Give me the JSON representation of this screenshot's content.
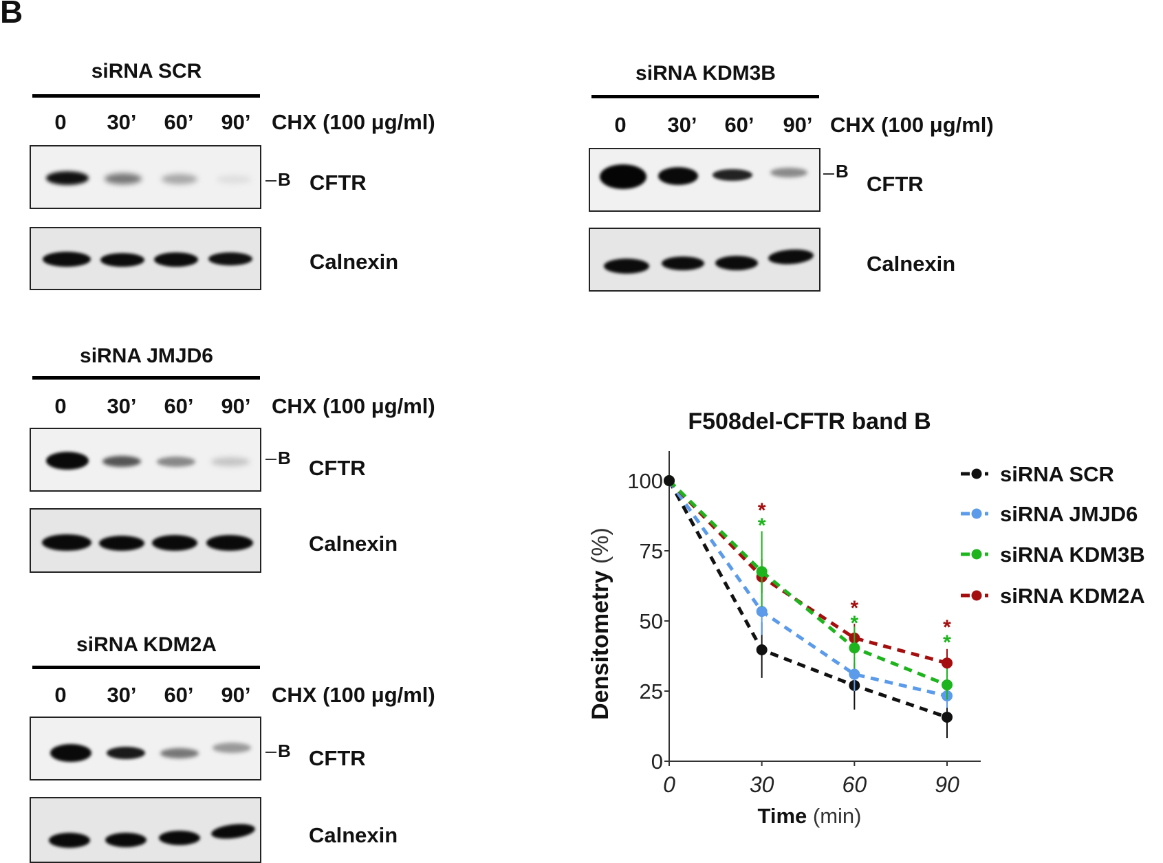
{
  "panel_letter": "B",
  "blots": [
    {
      "title": "siRNA SCR",
      "lanes": [
        "0",
        "30’",
        "60’",
        "90’"
      ],
      "treatment": "CHX (100 μg/ml)",
      "band_marker": "B",
      "top_label": "CFTR",
      "bottom_label": "Calnexin",
      "cftr_intensity": [
        0.95,
        0.45,
        0.3,
        0.08
      ],
      "calnexin_intensity": [
        1,
        1,
        1,
        0.95
      ]
    },
    {
      "title": "siRNA KDM3B",
      "lanes": [
        "0",
        "30’",
        "60’",
        "90’"
      ],
      "treatment": "CHX (100 μg/ml)",
      "band_marker": "B",
      "top_label": "CFTR",
      "bottom_label": "Calnexin",
      "cftr_intensity": [
        1,
        1,
        0.8,
        0.35
      ],
      "calnexin_intensity": [
        1,
        1,
        1,
        1
      ]
    },
    {
      "title": "siRNA JMJD6",
      "lanes": [
        "0",
        "30’",
        "60’",
        "90’"
      ],
      "treatment": "CHX (100 μg/ml)",
      "band_marker": "B",
      "top_label": "CFTR",
      "bottom_label": "Calnexin",
      "cftr_intensity": [
        1,
        0.55,
        0.4,
        0.2
      ],
      "calnexin_intensity": [
        1,
        1,
        1,
        1
      ]
    },
    {
      "title": "siRNA KDM2A",
      "lanes": [
        "0",
        "30’",
        "60’",
        "90’"
      ],
      "treatment": "CHX (100 μg/ml)",
      "band_marker": "B",
      "top_label": "CFTR",
      "bottom_label": "Calnexin",
      "cftr_intensity": [
        1,
        0.9,
        0.5,
        0.35
      ],
      "calnexin_intensity": [
        1,
        1,
        1,
        1
      ]
    }
  ],
  "chart_data": {
    "type": "line",
    "title": "F508del-CFTR band B",
    "xlabel": "Time (min)",
    "xlabel_bold": "Time",
    "xlabel_unit": "(min)",
    "ylabel": "Densitometry (%)",
    "ylabel_bold": "Densitometry",
    "ylabel_unit": "(%)",
    "x": [
      0,
      30,
      60,
      90
    ],
    "x_tick_labels": [
      "0",
      "30",
      "60",
      "90"
    ],
    "y_ticks": [
      0,
      25,
      50,
      75,
      100
    ],
    "y_tick_labels": [
      "0",
      "25",
      "50",
      "75",
      "100"
    ],
    "xlim": [
      0,
      100
    ],
    "ylim": [
      0,
      110
    ],
    "grid": false,
    "legend_position": "right",
    "series": [
      {
        "name": "siRNA SCR",
        "color": "#111111",
        "values": [
          100,
          39.7,
          27.0,
          15.7
        ],
        "error": [
          [
            100,
            100
          ],
          [
            29.7,
            49.5
          ],
          [
            18.4,
            35.0
          ],
          [
            8.3,
            22.5
          ]
        ]
      },
      {
        "name": "siRNA JMJD6",
        "color": "#5b9bea",
        "values": [
          100,
          53.4,
          31.0,
          23.3
        ],
        "error": [
          [
            100,
            100
          ],
          [
            45,
            64
          ],
          [
            25,
            37
          ],
          [
            19,
            28
          ]
        ]
      },
      {
        "name": "siRNA KDM3B",
        "color": "#1db41d",
        "values": [
          100,
          67.6,
          40.4,
          27.2
        ],
        "error": [
          [
            100,
            100
          ],
          [
            55,
            82
          ],
          [
            33,
            48
          ],
          [
            22,
            33
          ]
        ]
      },
      {
        "name": "siRNA KDM2A",
        "color": "#a50e0e",
        "values": [
          100,
          65.7,
          43.9,
          35.0
        ],
        "error": [
          [
            100,
            100
          ],
          [
            60,
            72
          ],
          [
            38,
            49
          ],
          [
            30,
            40
          ]
        ]
      }
    ],
    "annotations": [
      {
        "x": 30,
        "text": "*",
        "colors": [
          "#a50e0e",
          "#1db41d"
        ]
      },
      {
        "x": 60,
        "text": "*",
        "colors": [
          "#a50e0e",
          "#1db41d"
        ]
      },
      {
        "x": 90,
        "text": "*",
        "colors": [
          "#a50e0e",
          "#1db41d"
        ]
      }
    ]
  }
}
